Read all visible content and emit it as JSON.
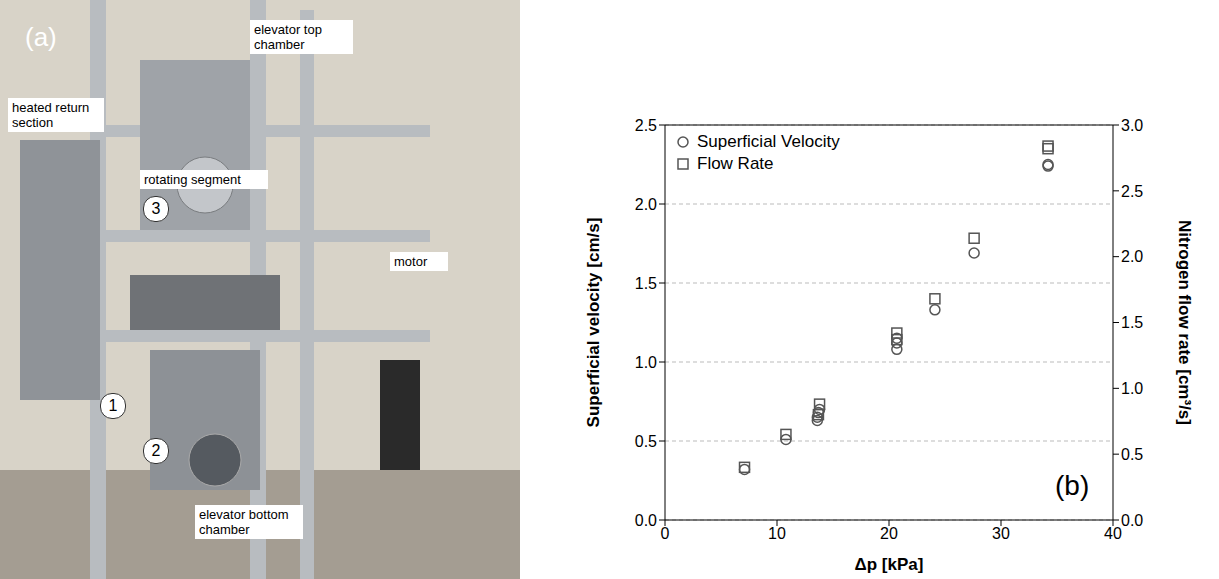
{
  "photo": {
    "panel_label": "(a)",
    "labels": [
      "elevator top chamber",
      "heated return section",
      "rotating segment",
      "motor",
      "elevator bottom chamber"
    ],
    "markers": [
      "1",
      "2",
      "3"
    ]
  },
  "chart_data": {
    "type": "scatter",
    "annotations": [
      "(b)"
    ],
    "xlabel": "Δp [kPa]",
    "ylabel": "Superficial velocity [cm/s]",
    "y2label": "Nitrogen flow rate [cm³/s]",
    "xlim": [
      0,
      40
    ],
    "xticks": [
      0,
      10,
      20,
      30,
      40
    ],
    "ylim": [
      0,
      2.5
    ],
    "yticks": [
      {
        "value": 0,
        "label": "0.0"
      },
      {
        "value": 0.5,
        "label": "0.5"
      },
      {
        "value": 1,
        "label": "1.0"
      },
      {
        "value": 1.5,
        "label": "1.5"
      },
      {
        "value": 2,
        "label": "2.0"
      },
      {
        "value": 2.5,
        "label": "2.5"
      }
    ],
    "y2lim": [
      0,
      3
    ],
    "y2ticks": [
      {
        "value": 0,
        "label": "0.0"
      },
      {
        "value": 0.5,
        "label": "0.5"
      },
      {
        "value": 1,
        "label": "1.0"
      },
      {
        "value": 1.5,
        "label": "1.5"
      },
      {
        "value": 2,
        "label": "2.0"
      },
      {
        "value": 2.5,
        "label": "2.5"
      },
      {
        "value": 3,
        "label": "3.0"
      }
    ],
    "grid": true,
    "legend": "upper left",
    "series": [
      {
        "name": "Superficial Velocity",
        "color": "#555555",
        "marker": "circle",
        "axis": "y",
        "x": [
          7.1,
          10.8,
          13.6,
          13.6,
          13.7,
          13.8,
          20.7,
          20.7,
          20.7,
          24.1,
          27.6,
          34.2,
          34.2
        ],
        "values": [
          0.32,
          0.51,
          0.63,
          0.65,
          0.68,
          0.7,
          1.08,
          1.12,
          1.15,
          1.33,
          1.69,
          2.24,
          2.25
        ]
      },
      {
        "name": "Flow Rate",
        "color": "#555555",
        "marker": "square",
        "axis": "y2",
        "x": [
          7.1,
          10.8,
          13.7,
          13.8,
          20.7,
          20.7,
          24.1,
          27.6,
          34.2,
          34.2
        ],
        "values": [
          0.4,
          0.65,
          0.8,
          0.88,
          1.37,
          1.42,
          1.68,
          2.14,
          2.82,
          2.84
        ]
      }
    ]
  }
}
